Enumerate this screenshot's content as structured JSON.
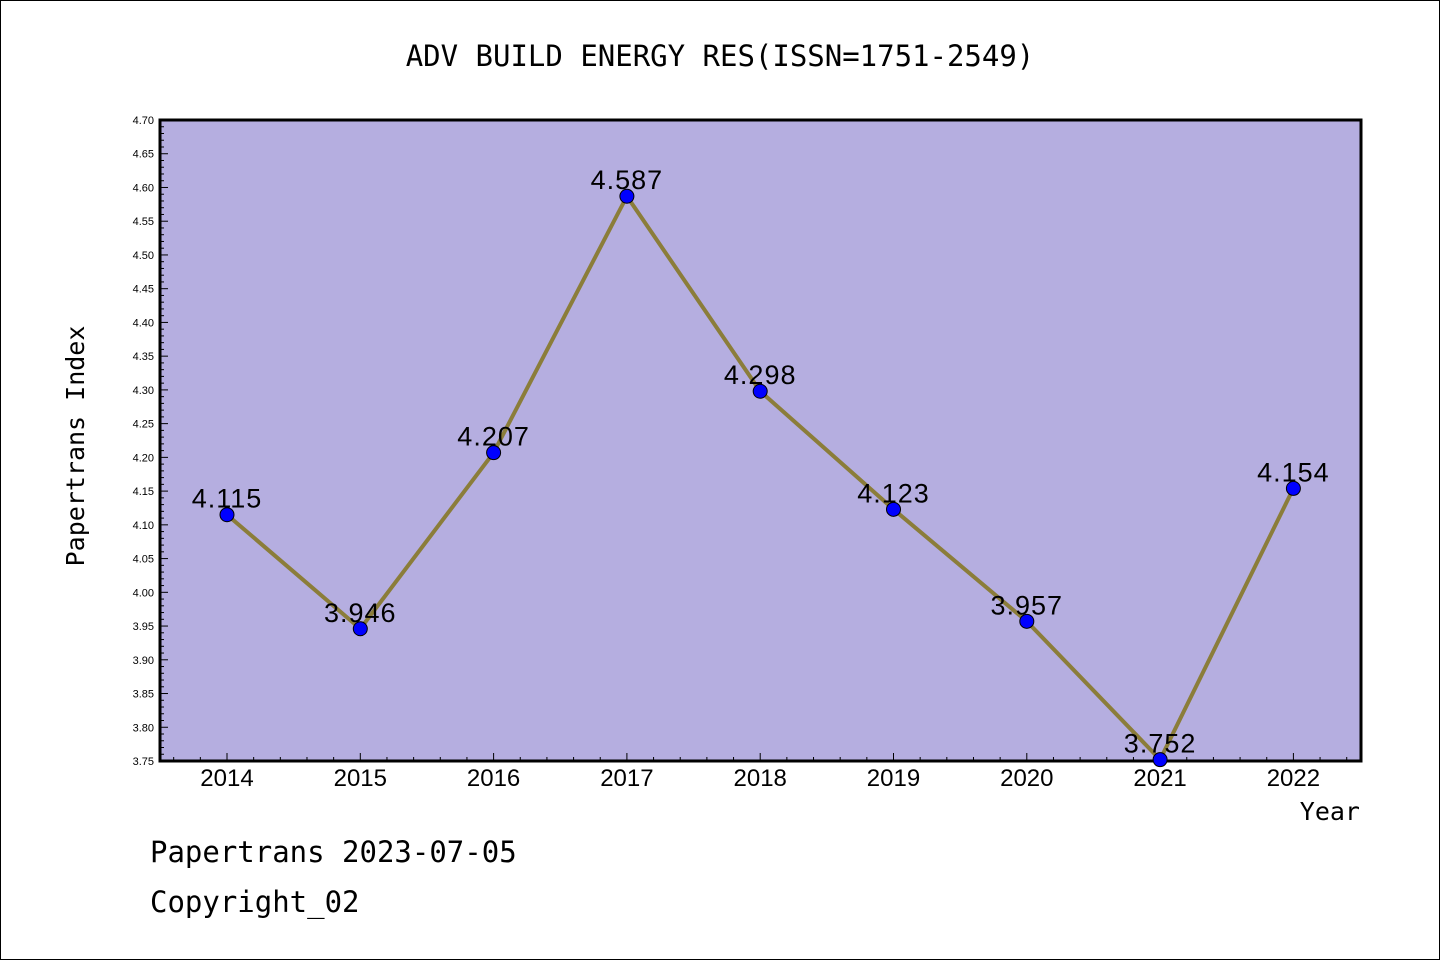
{
  "chart_data": {
    "type": "line",
    "title": "ADV BUILD ENERGY RES(ISSN=1751-2549)",
    "xlabel": "Year",
    "ylabel": "Papertrans Index",
    "categories": [
      "2014",
      "2015",
      "2016",
      "2017",
      "2018",
      "2019",
      "2020",
      "2021",
      "2022"
    ],
    "values": [
      4.115,
      3.946,
      4.207,
      4.587,
      4.298,
      4.123,
      3.957,
      3.752,
      4.154
    ],
    "data_labels": [
      "4.115",
      "3.946",
      "4.207",
      "4.587",
      "4.298",
      "4.123",
      "3.957",
      "3.752",
      "4.154"
    ],
    "ylim": [
      3.75,
      4.7
    ],
    "y_ticks": [
      "3.75",
      "3.80",
      "3.85",
      "3.90",
      "3.95",
      "4.00",
      "4.05",
      "4.10",
      "4.15",
      "4.20",
      "4.25",
      "4.30",
      "4.35",
      "4.40",
      "4.45",
      "4.50",
      "4.55",
      "4.60",
      "4.65",
      "4.70"
    ],
    "grid": false,
    "legend": "none",
    "colors": {
      "plot_background": "#b5aee0",
      "line": "#8b7d3a",
      "marker": "#0000ff"
    }
  },
  "footer": {
    "line1": "Papertrans 2023-07-05",
    "line2": "Copyright_02"
  }
}
